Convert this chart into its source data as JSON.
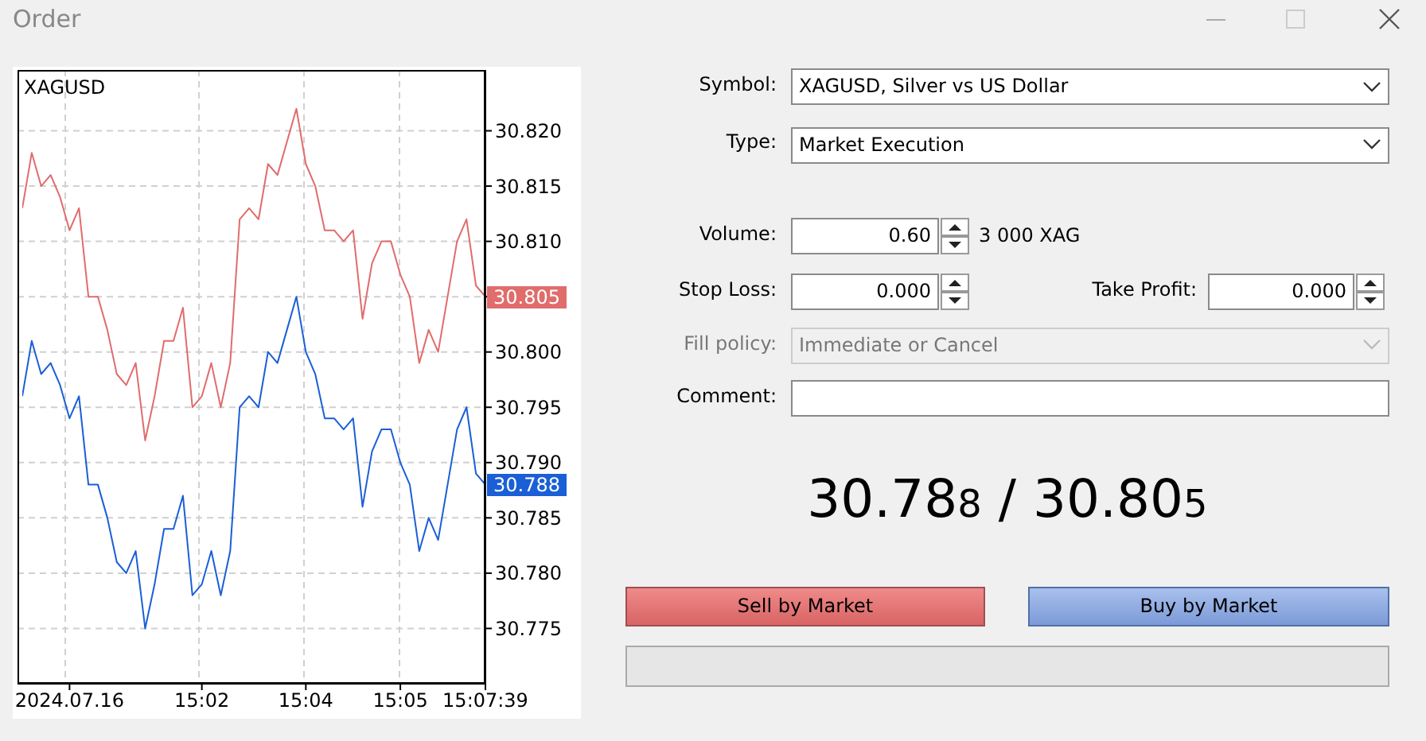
{
  "chart_data": [
    {
      "type": "line",
      "title": "XAGUSD",
      "categories": [
        null,
        null,
        null,
        null,
        null,
        "2024.07.16",
        null,
        null,
        null,
        null,
        null,
        null,
        null,
        null,
        null,
        null,
        null,
        null,
        null,
        "15:02",
        null,
        null,
        null,
        null,
        null,
        null,
        null,
        null,
        null,
        null,
        "15:04",
        null,
        null,
        null,
        null,
        null,
        null,
        null,
        null,
        null,
        "15:05",
        null,
        null,
        null,
        null,
        null,
        null,
        null,
        null,
        "15:07:39"
      ],
      "series": [
        {
          "color": "#e06c6c",
          "values": [
            30.813,
            30.818,
            30.815,
            30.816,
            30.814,
            30.811,
            30.813,
            30.805,
            30.805,
            30.802,
            30.798,
            30.797,
            30.799,
            30.792,
            30.796,
            30.801,
            30.801,
            30.804,
            30.795,
            30.796,
            30.799,
            30.795,
            30.799,
            30.812,
            30.813,
            30.812,
            30.817,
            30.816,
            30.819,
            30.822,
            30.817,
            30.815,
            30.811,
            30.811,
            30.81,
            30.811,
            30.803,
            30.808,
            30.81,
            30.81,
            30.807,
            30.805,
            30.799,
            30.802,
            30.8,
            30.805,
            30.81,
            30.812,
            30.806,
            30.805
          ]
        },
        {
          "color": "#1a5fd6",
          "values": [
            30.796,
            30.801,
            30.798,
            30.799,
            30.797,
            30.794,
            30.796,
            30.788,
            30.788,
            30.785,
            30.781,
            30.78,
            30.782,
            30.775,
            30.779,
            30.784,
            30.784,
            30.787,
            30.778,
            30.779,
            30.782,
            30.778,
            30.782,
            30.795,
            30.796,
            30.795,
            30.8,
            30.799,
            30.802,
            30.805,
            30.8,
            30.798,
            30.794,
            30.794,
            30.793,
            30.794,
            30.786,
            30.791,
            30.793,
            30.793,
            30.79,
            30.788,
            30.782,
            30.785,
            30.783,
            30.788,
            30.793,
            30.795,
            30.789,
            30.788
          ]
        }
      ],
      "ylim": [
        30.77,
        30.8255
      ],
      "yticks": [
        30.775,
        {
          "value": 30.78,
          "label": "30.780"
        },
        30.785,
        {
          "value": 30.79,
          "label": "30.790"
        },
        30.795,
        {
          "value": 30.8,
          "label": "30.800"
        },
        30.805,
        {
          "value": 30.81,
          "label": "30.810"
        },
        30.815,
        {
          "value": 30.82,
          "label": "30.820"
        }
      ],
      "grid": true,
      "annotations": [
        "30.805",
        "30.788"
      ]
    },
    {
      "type": "other",
      "title": "Order",
      "annotations": [
        "Symbol:",
        "XAGUSD, Silver vs US Dollar",
        "Type:",
        "Market Execution",
        "Volume:",
        "0.60",
        "3 000 XAG",
        "Stop Loss:",
        "0.000",
        "Take Profit:",
        "0.000",
        "Fill policy:",
        "Immediate or Cancel",
        "Comment:",
        "30.788 / 30.805",
        "Sell by Market",
        "Buy by Market"
      ]
    }
  ]
}
